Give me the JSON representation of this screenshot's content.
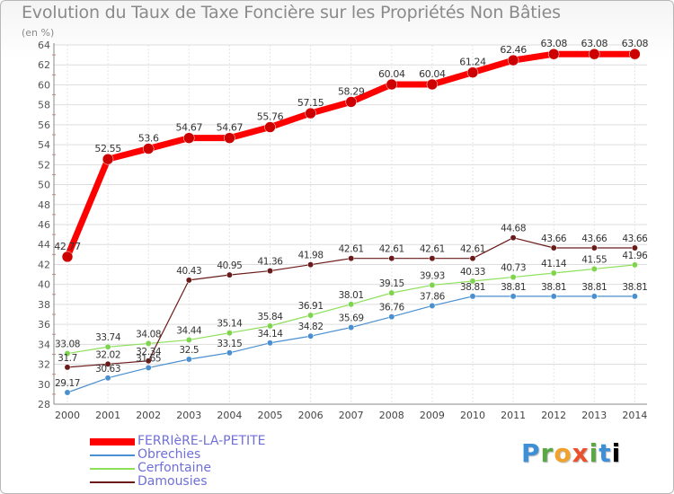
{
  "title": "Evolution du Taux de Taxe Foncière sur les Propriétés Non Bâties",
  "unit": "(en %)",
  "logo": "Proxiti",
  "colors": {
    "FERRIèRE-LA-PETITE": "#ff0000",
    "Obrechies": "#4a8fd0",
    "Cerfontaine": "#7fd44f",
    "Damousies": "#6b1a1a"
  },
  "chart_data": {
    "type": "line",
    "title": "Evolution du Taux de Taxe Foncière sur les Propriétés Non Bâties",
    "ylabel": "(en %)",
    "xlabel": "",
    "categories": [
      "2000",
      "2001",
      "2002",
      "2003",
      "2004",
      "2005",
      "2006",
      "2007",
      "2008",
      "2009",
      "2010",
      "2011",
      "2012",
      "2013",
      "2014"
    ],
    "ylim": [
      28,
      64
    ],
    "yticks": [
      28,
      30,
      32,
      34,
      36,
      38,
      40,
      42,
      44,
      46,
      48,
      50,
      52,
      54,
      56,
      58,
      60,
      62,
      64
    ],
    "grid": true,
    "legend_position": "bottom-left",
    "series": [
      {
        "name": "FERRIèRE-LA-PETITE",
        "values": [
          42.77,
          52.55,
          53.6,
          54.67,
          54.67,
          55.76,
          57.15,
          58.29,
          60.04,
          60.04,
          61.24,
          62.46,
          63.08,
          63.08,
          63.08
        ],
        "labels": [
          "42.77",
          "52.55",
          "53.6",
          "54.67",
          "54.67",
          "55.76",
          "57.15",
          "58.29",
          "60.04",
          "60.04",
          "61.24",
          "62.46",
          "63.08",
          "63.08",
          "63.08"
        ]
      },
      {
        "name": "Obrechies",
        "values": [
          29.17,
          30.63,
          31.65,
          32.5,
          33.15,
          34.14,
          34.82,
          35.69,
          36.76,
          37.86,
          38.81,
          38.81,
          38.81,
          38.81,
          38.81
        ],
        "labels": [
          "29.17",
          "30.63",
          "31.65",
          "32.5",
          "33.15",
          "34.14",
          "34.82",
          "35.69",
          "36.76",
          "37.86",
          "38.81",
          "38.81",
          "38.81",
          "38.81",
          "38.81"
        ]
      },
      {
        "name": "Cerfontaine",
        "values": [
          33.08,
          33.74,
          34.08,
          34.44,
          35.14,
          35.84,
          36.91,
          38.01,
          39.15,
          39.93,
          40.33,
          40.73,
          41.14,
          41.55,
          41.96
        ],
        "labels": [
          "33.08",
          "33.74",
          "34.08",
          "34.44",
          "35.14",
          "35.84",
          "36.91",
          "38.01",
          "39.15",
          "39.93",
          "40.33",
          "40.73",
          "41.14",
          "41.55",
          "41.96"
        ]
      },
      {
        "name": "Damousies",
        "values": [
          31.7,
          32.02,
          32.34,
          40.43,
          40.95,
          41.36,
          41.98,
          42.61,
          42.61,
          42.61,
          42.61,
          44.68,
          43.66,
          43.66,
          43.66
        ],
        "labels": [
          "31.7",
          "32.02",
          "32.34",
          "40.43",
          "40.95",
          "41.36",
          "41.98",
          "42.61",
          "42.61",
          "42.61",
          "42.61",
          "44.68",
          "43.66",
          "43.66",
          "43.66"
        ]
      }
    ]
  }
}
